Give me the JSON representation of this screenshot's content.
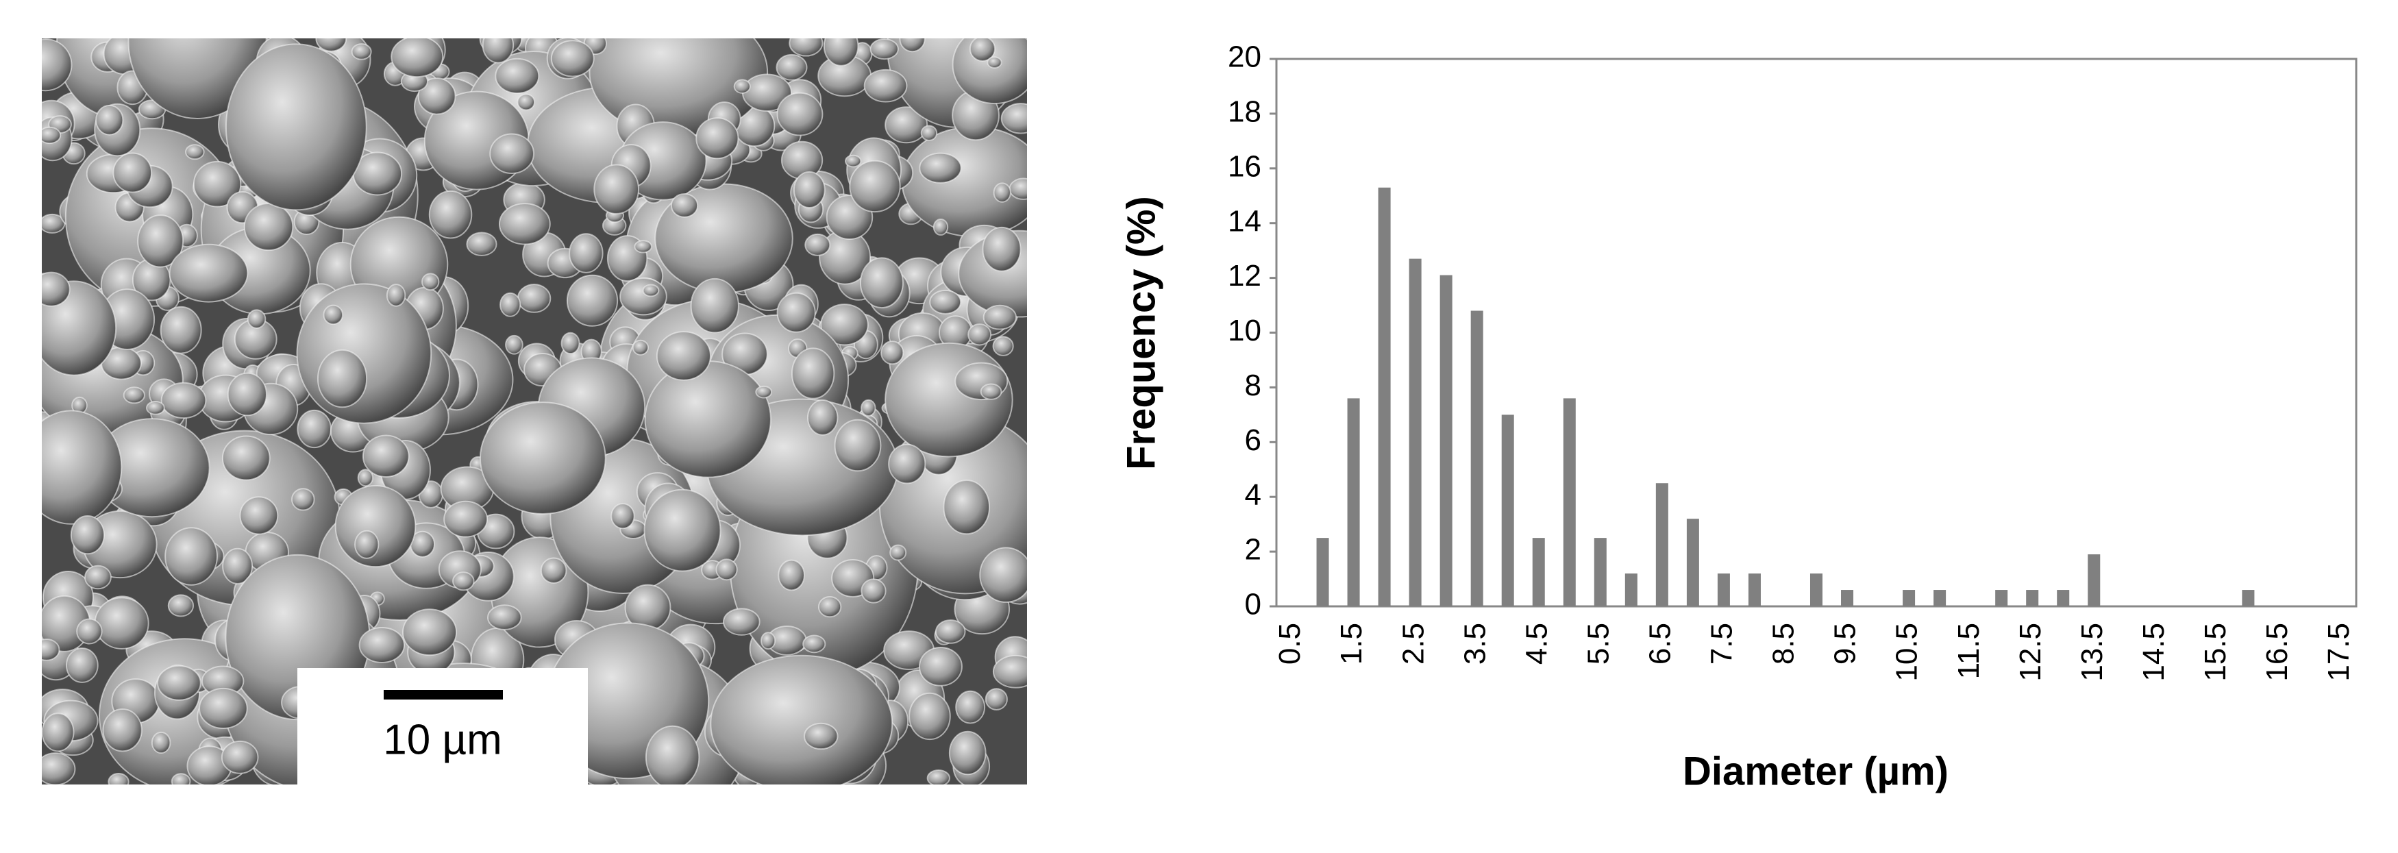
{
  "image": {
    "scale_bar_label": "10 µm"
  },
  "chart_data": {
    "type": "bar",
    "xlabel": "Diameter (µm)",
    "ylabel": "Frequency (%)",
    "categories": [
      "0.5",
      null,
      "1.5",
      null,
      "2.5",
      null,
      "3.5",
      null,
      "4.5",
      null,
      "5.5",
      null,
      "6.5",
      null,
      "7.5",
      null,
      "8.5",
      null,
      "9.5",
      null,
      "10.5",
      null,
      "11.5",
      null,
      "12.5",
      null,
      "13.5",
      null,
      "14.5",
      null,
      "15.5",
      null,
      "16.5",
      null,
      "17.5"
    ],
    "values": [
      0,
      2.5,
      7.6,
      15.3,
      12.7,
      12.1,
      10.8,
      7.0,
      2.5,
      7.6,
      2.5,
      1.2,
      4.5,
      3.2,
      1.2,
      1.2,
      0,
      1.2,
      0.6,
      0,
      0.6,
      0.6,
      0,
      0.6,
      0.6,
      0.6,
      1.9,
      0,
      0,
      0,
      0,
      0.6,
      0,
      0,
      0
    ],
    "color": "#808080",
    "ylim": [
      0,
      20
    ],
    "yticks": [
      0,
      2,
      4,
      6,
      8,
      10,
      12,
      14,
      16,
      18,
      20
    ]
  }
}
